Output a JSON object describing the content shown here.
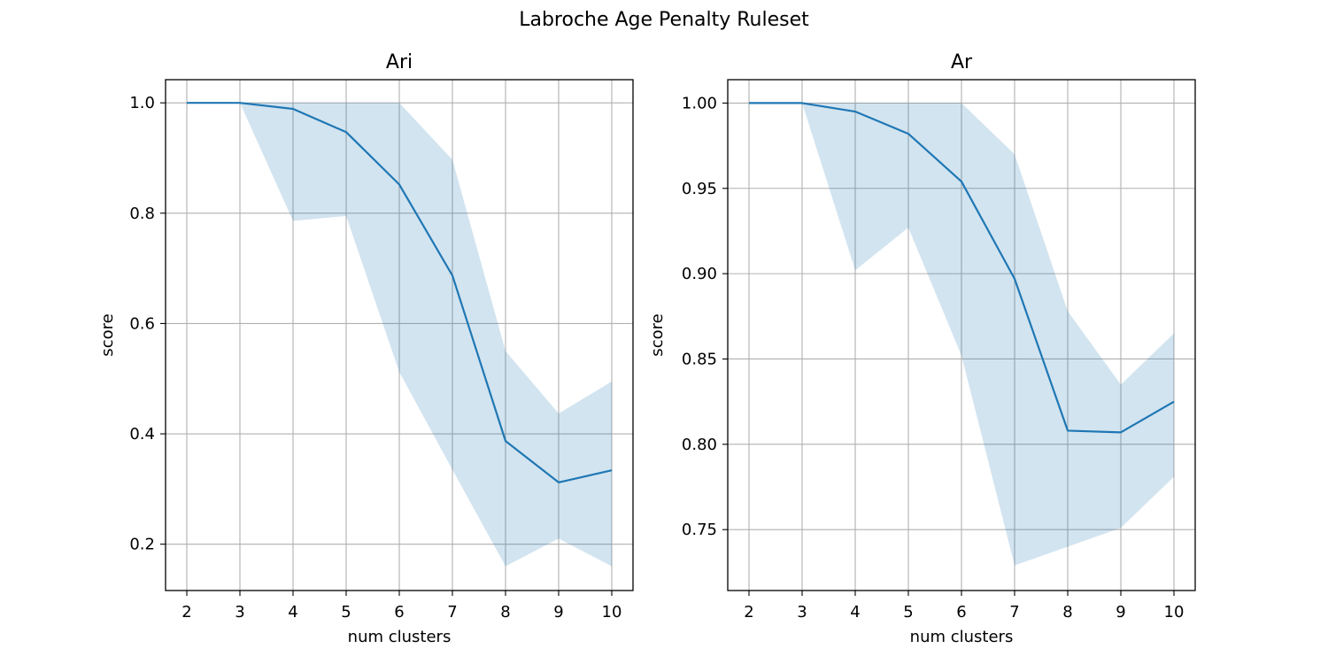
{
  "figure": {
    "suptitle": "Labroche Age Penalty Ruleset"
  },
  "chart_data": [
    {
      "type": "line",
      "title": "Ari",
      "xlabel": "num clusters",
      "ylabel": "score",
      "x": [
        2,
        3,
        4,
        5,
        6,
        7,
        8,
        9,
        10
      ],
      "series": [
        {
          "values": [
            1.0,
            1.0,
            0.989,
            0.947,
            0.852,
            0.687,
            0.387,
            0.312,
            0.334
          ],
          "band_lower": [
            1.0,
            1.0,
            0.786,
            0.795,
            0.512,
            0.335,
            0.16,
            0.21,
            0.16
          ],
          "band_upper": [
            1.0,
            1.0,
            1.0,
            1.0,
            1.0,
            0.897,
            0.55,
            0.437,
            0.495
          ],
          "color": "#1f77b4",
          "band_color": "#1f77b4"
        }
      ],
      "xlim": [
        1.6,
        10.4
      ],
      "ylim": [
        0.116,
        1.042
      ],
      "xticks": [
        "2",
        "3",
        "4",
        "5",
        "6",
        "7",
        "8",
        "9",
        "10"
      ],
      "yticks": [
        "0.2",
        "0.4",
        "0.6",
        "0.8",
        "1.0"
      ],
      "grid": true
    },
    {
      "type": "line",
      "title": "Ar",
      "xlabel": "num clusters",
      "ylabel": "score",
      "x": [
        2,
        3,
        4,
        5,
        6,
        7,
        8,
        9,
        10
      ],
      "series": [
        {
          "values": [
            1.0,
            1.0,
            0.995,
            0.982,
            0.954,
            0.897,
            0.808,
            0.807,
            0.825
          ],
          "band_lower": [
            1.0,
            1.0,
            0.902,
            0.927,
            0.852,
            0.729,
            0.74,
            0.751,
            0.781
          ],
          "band_upper": [
            1.0,
            1.0,
            1.0,
            1.0,
            1.0,
            0.97,
            0.878,
            0.835,
            0.865
          ],
          "color": "#1f77b4",
          "band_color": "#1f77b4"
        }
      ],
      "xlim": [
        1.6,
        10.4
      ],
      "ylim": [
        0.7143,
        1.0137
      ],
      "xticks": [
        "2",
        "3",
        "4",
        "5",
        "6",
        "7",
        "8",
        "9",
        "10"
      ],
      "yticks": [
        "0.75",
        "0.80",
        "0.85",
        "0.90",
        "0.95",
        "1.00"
      ],
      "grid": true
    }
  ]
}
